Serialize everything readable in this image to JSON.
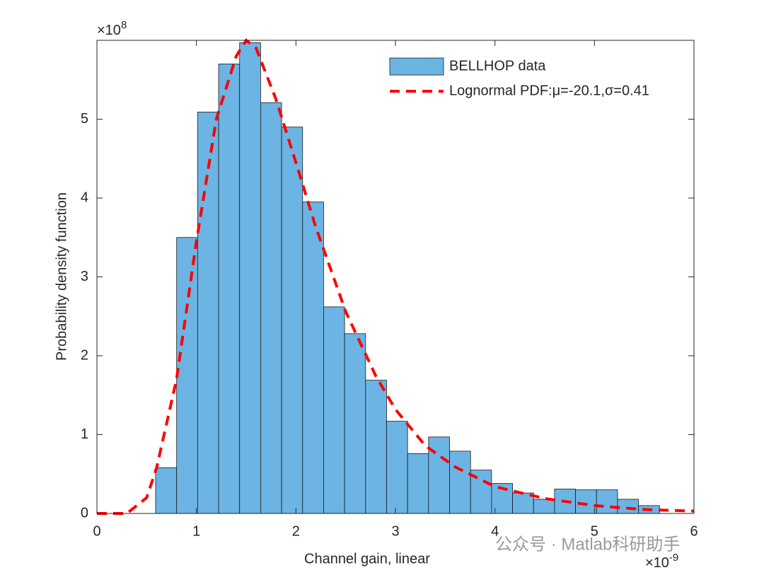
{
  "chart_data": {
    "type": "histogram",
    "xlabel": "Channel gain, linear",
    "ylabel": "Probability density function",
    "x_multiplier": {
      "base": "×10",
      "exponent": "-9"
    },
    "y_multiplier": {
      "base": "×10",
      "exponent": "8"
    },
    "xlim": [
      0,
      6
    ],
    "ylim": [
      0,
      6
    ],
    "xticks": [
      0,
      1,
      2,
      3,
      4,
      5,
      6
    ],
    "yticks": [
      0,
      1,
      2,
      3,
      4,
      5
    ],
    "legend": "upper right",
    "series": [
      {
        "type": "histogram",
        "name": "BELLHOP data",
        "color": "#6cb4e4",
        "bins": [
          0.59,
          0.801,
          1.012,
          1.223,
          1.434,
          1.645,
          1.856,
          2.067,
          2.278,
          2.489,
          2.7,
          2.911,
          3.122,
          3.333,
          3.544,
          3.755,
          3.966,
          4.177,
          4.388,
          4.599,
          4.81,
          5.021,
          5.232,
          5.443,
          5.654
        ],
        "values": [
          0.58,
          3.5,
          5.09,
          5.7,
          5.97,
          5.21,
          4.9,
          3.95,
          2.62,
          2.28,
          1.69,
          1.17,
          0.76,
          0.97,
          0.79,
          0.55,
          0.38,
          0.26,
          0.18,
          0.31,
          0.3,
          0.3,
          0.18,
          0.1
        ]
      },
      {
        "type": "line",
        "name": "Lognormal PDF:μ=-20.1,σ=0.41",
        "color": "#ff0000",
        "x": [
          0,
          0.3,
          0.5,
          0.6,
          0.8,
          1.0,
          1.2,
          1.4,
          1.5,
          1.6,
          1.8,
          2.0,
          2.2,
          2.5,
          2.8,
          3.0,
          3.3,
          3.6,
          4.0,
          4.5,
          5.0,
          5.5,
          6.0
        ],
        "values": [
          0,
          0,
          0.2,
          0.58,
          1.7,
          3.45,
          5.0,
          5.8,
          6.0,
          5.9,
          5.25,
          4.45,
          3.63,
          2.56,
          1.75,
          1.32,
          0.86,
          0.59,
          0.34,
          0.19,
          0.1,
          0.05,
          0.03
        ]
      }
    ],
    "watermark": "公众号 · Matlab科研助手"
  }
}
